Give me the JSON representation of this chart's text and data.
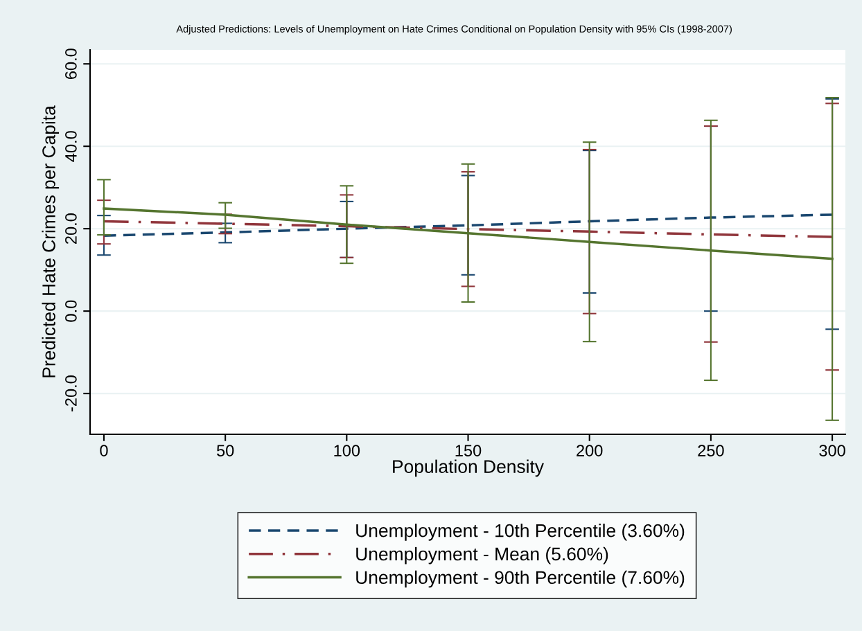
{
  "chart_data": {
    "type": "line",
    "title": "Adjusted Predictions: Levels of Unemployment on Hate Crimes Conditional on Population Density with 95% CIs (1998-2007)",
    "xlabel": "Population Density",
    "ylabel": "Predicted Hate Crimes per Capita",
    "x": [
      0,
      50,
      100,
      150,
      200,
      250,
      300
    ],
    "series": [
      {
        "name": "Unemployment - 10th Percentile (3.60%)",
        "color": "#1a476f",
        "line_style": "dashed",
        "values": [
          18.3,
          19.1,
          20.0,
          20.8,
          21.8,
          22.7,
          23.4
        ],
        "errors": [
          [
            13.6,
            23.2
          ],
          [
            16.6,
            21.3
          ],
          [
            13.0,
            26.6
          ],
          [
            8.8,
            32.9
          ],
          [
            4.4,
            39.0
          ],
          [
            0.0,
            44.9
          ],
          [
            -4.4,
            51.5
          ]
        ]
      },
      {
        "name": "Unemployment - Mean (5.60%)",
        "color": "#90353b",
        "line_style": "dashdot",
        "values": [
          21.8,
          21.2,
          20.6,
          19.9,
          19.3,
          18.6,
          18.0
        ],
        "errors": [
          [
            16.3,
            26.9
          ],
          [
            18.8,
            23.5
          ],
          [
            13.0,
            28.2
          ],
          [
            6.0,
            33.8
          ],
          [
            -0.6,
            39.2
          ],
          [
            -7.5,
            44.9
          ],
          [
            -14.3,
            50.4
          ]
        ]
      },
      {
        "name": "Unemployment - 90th Percentile (7.60%)",
        "color": "#55752f",
        "line_style": "solid",
        "values": [
          24.9,
          23.4,
          21.0,
          18.9,
          16.8,
          14.7,
          12.7
        ],
        "errors": [
          [
            18.5,
            31.9
          ],
          [
            20.1,
            26.3
          ],
          [
            11.6,
            30.4
          ],
          [
            2.2,
            35.7
          ],
          [
            -7.4,
            41.0
          ],
          [
            -16.8,
            46.3
          ],
          [
            -26.5,
            51.8
          ]
        ]
      }
    ],
    "xlim": [
      -5.7,
      305.4
    ],
    "xticks": [
      0,
      50,
      100,
      150,
      200,
      250,
      300
    ],
    "ylim": [
      -29.9,
      63.4
    ],
    "yticks": [
      {
        "value": -20,
        "label": "-20.0"
      },
      {
        "value": 0,
        "label": "0.0"
      },
      {
        "value": 20,
        "label": "20.0"
      },
      {
        "value": 40,
        "label": "40.0"
      },
      {
        "value": 60,
        "label": "60.0"
      }
    ],
    "grid": "y",
    "legend": "bottom",
    "marker": "none"
  }
}
